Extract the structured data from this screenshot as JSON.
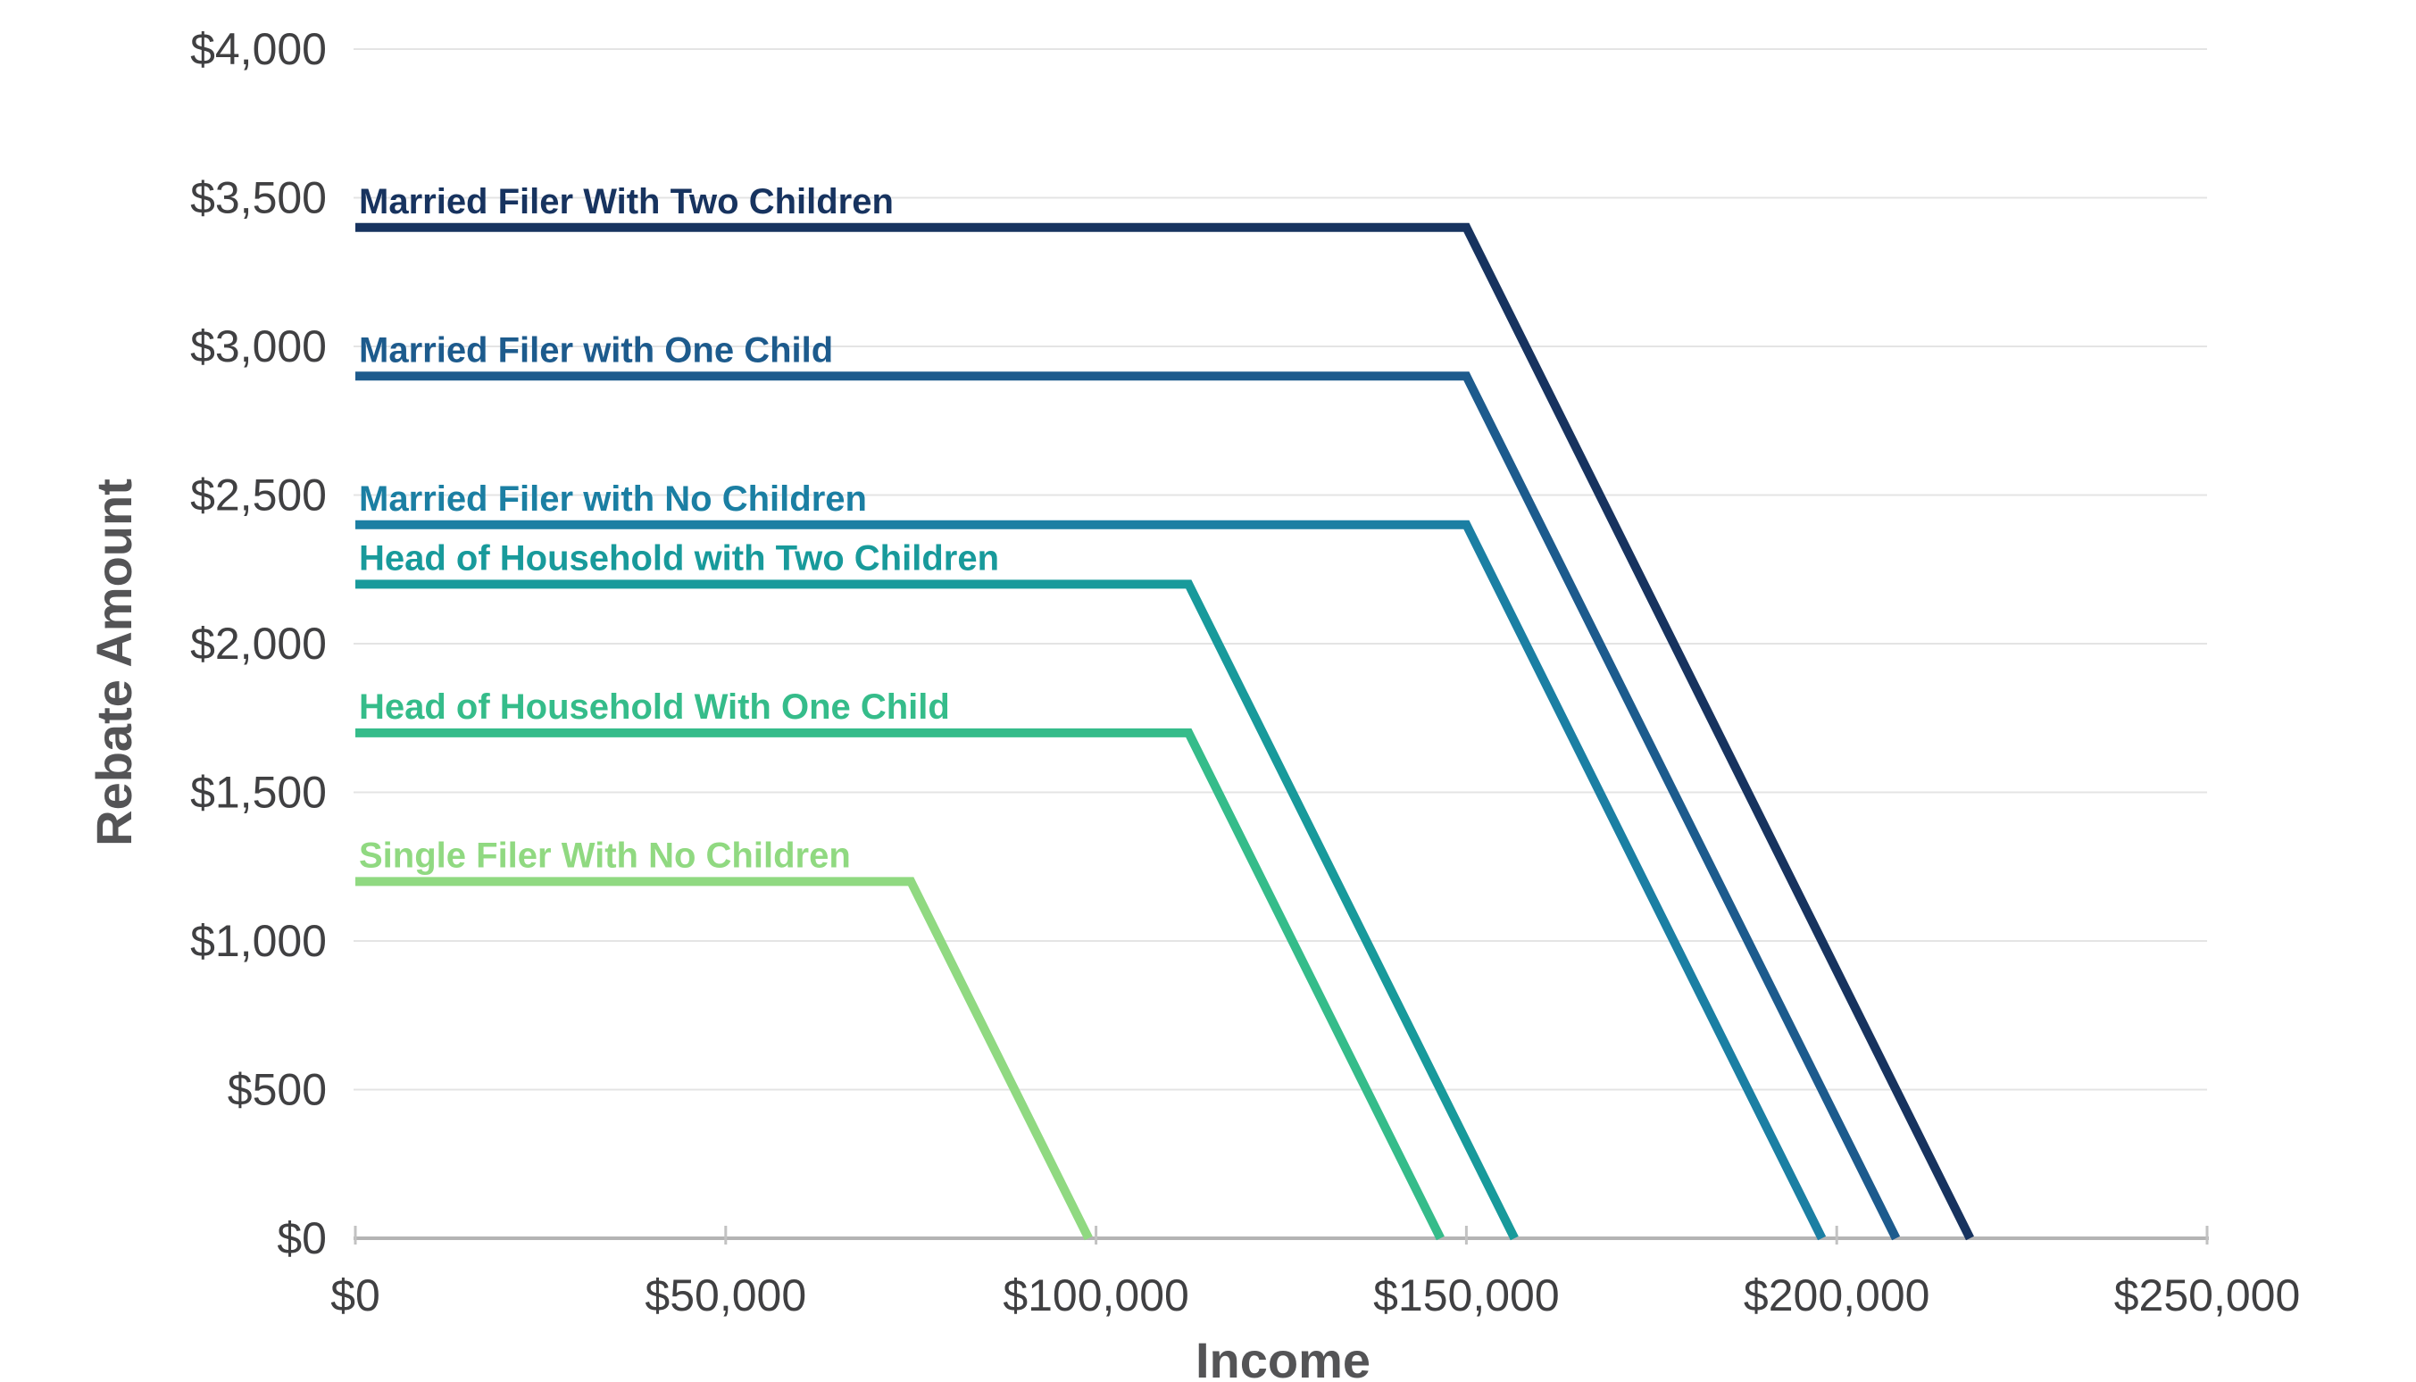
{
  "chart_data": {
    "type": "line",
    "title": "",
    "xlabel": "Income",
    "ylabel": "Rebate Amount",
    "xlim": [
      0,
      250000
    ],
    "ylim": [
      0,
      4000
    ],
    "x_tick_step": 50000,
    "y_tick_step": 500,
    "x_tick_labels": [
      "$0",
      "$50,000",
      "$100,000",
      "$150,000",
      "$200,000",
      "$250,000"
    ],
    "y_tick_labels": [
      "$0",
      "$500",
      "$1,000",
      "$1,500",
      "$2,000",
      "$2,500",
      "$3,000",
      "$3,500",
      "$4,000"
    ],
    "grid": "horizontal",
    "legend": "inline-labels-above-lines",
    "series": [
      {
        "name": "Married Filer With Two Children",
        "color": "#17335f",
        "points": [
          [
            0,
            3400
          ],
          [
            150000,
            3400
          ],
          [
            218000,
            0
          ]
        ]
      },
      {
        "name": "Married Filer with One Child",
        "color": "#1d5b8d",
        "points": [
          [
            0,
            2900
          ],
          [
            150000,
            2900
          ],
          [
            208000,
            0
          ]
        ]
      },
      {
        "name": "Married Filer with No Children",
        "color": "#1b7fa3",
        "points": [
          [
            0,
            2400
          ],
          [
            150000,
            2400
          ],
          [
            198000,
            0
          ]
        ]
      },
      {
        "name": "Head of Household with Two Children",
        "color": "#189a9b",
        "points": [
          [
            0,
            2200
          ],
          [
            112500,
            2200
          ],
          [
            156500,
            0
          ]
        ]
      },
      {
        "name": "Head of Household With One Child",
        "color": "#35bc8a",
        "points": [
          [
            0,
            1700
          ],
          [
            112500,
            1700
          ],
          [
            146500,
            0
          ]
        ]
      },
      {
        "name": "Single Filer With No Children",
        "color": "#90d981",
        "points": [
          [
            0,
            1200
          ],
          [
            75000,
            1200
          ],
          [
            99000,
            0
          ]
        ]
      }
    ],
    "colors": {
      "gridline": "#e4e4e4",
      "axis_line": "#b4b4b4",
      "tick_mark": "#c2c2c2",
      "tick_label": "#404042",
      "axis_title": "#545456",
      "background": "#ffffff"
    }
  }
}
